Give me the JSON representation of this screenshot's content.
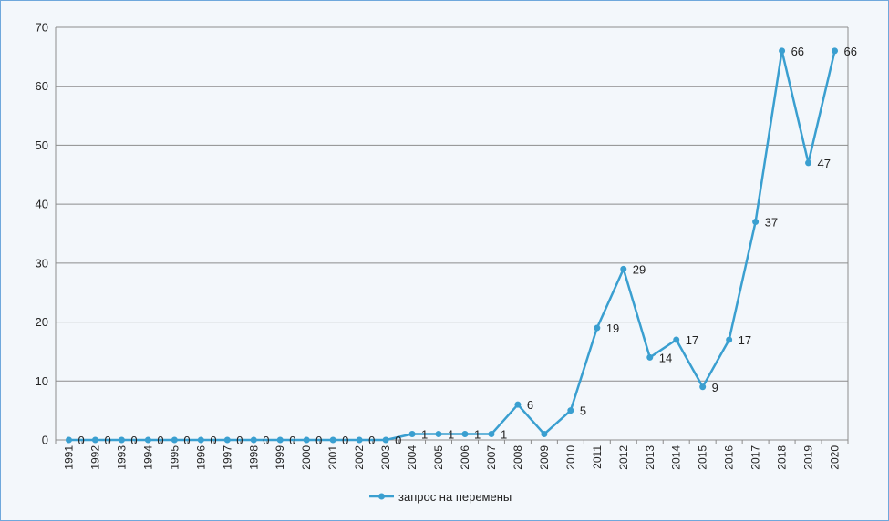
{
  "chart_data": {
    "type": "line",
    "title": "",
    "xlabel": "",
    "ylabel": "",
    "ylim": [
      0,
      70
    ],
    "yticks": [
      0,
      10,
      20,
      30,
      40,
      50,
      60,
      70
    ],
    "grid": true,
    "legend_position": "bottom",
    "x": [
      "1991",
      "1992",
      "1993",
      "1994",
      "1995",
      "1996",
      "1997",
      "1998",
      "1999",
      "2000",
      "2001",
      "2002",
      "2003",
      "2004",
      "2005",
      "2006",
      "2007",
      "2008",
      "2009",
      "2010",
      "2011",
      "2012",
      "2013",
      "2014",
      "2015",
      "2016",
      "2017",
      "2018",
      "2019",
      "2020"
    ],
    "series": [
      {
        "name": "запрос на перемены",
        "color": "#3a9fd0",
        "values": [
          0,
          0,
          0,
          0,
          0,
          0,
          0,
          0,
          0,
          0,
          0,
          0,
          0,
          1,
          1,
          1,
          1,
          6,
          1,
          5,
          19,
          29,
          14,
          17,
          9,
          17,
          37,
          66,
          47,
          66
        ],
        "labels": [
          "0",
          "0",
          "0",
          "0",
          "0",
          "0",
          "0",
          "0",
          "0",
          "0",
          "0",
          "0",
          "0",
          "1",
          "1",
          "1",
          "1",
          "6",
          "",
          "5",
          "19",
          "29",
          "14",
          "17",
          "9",
          "17",
          "37",
          "66",
          "47",
          "66"
        ]
      }
    ]
  }
}
